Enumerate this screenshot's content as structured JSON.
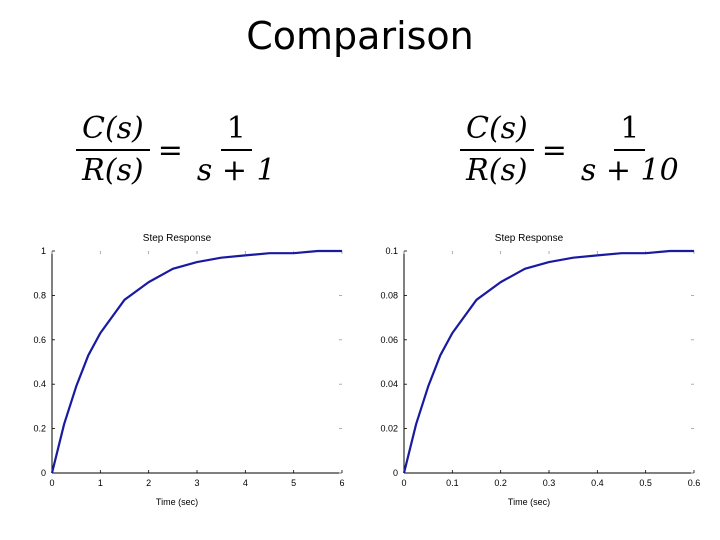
{
  "slide": {
    "title": "Comparison"
  },
  "formulas": [
    {
      "lhs_num": "C(s)",
      "lhs_den": "R(s)",
      "rhs_num": "1",
      "rhs_den": "s + 1"
    },
    {
      "lhs_num": "C(s)",
      "lhs_den": "R(s)",
      "rhs_num": "1",
      "rhs_den": "s + 10"
    }
  ],
  "chart_data": [
    {
      "type": "line",
      "title": "Step Response",
      "xlabel": "Time (sec)",
      "ylabel": "",
      "xlim": [
        0,
        6
      ],
      "ylim": [
        0,
        1
      ],
      "xticks": [
        0,
        1,
        2,
        3,
        4,
        5,
        6
      ],
      "yticks": [
        0,
        0.2,
        0.4,
        0.6,
        0.8,
        1
      ],
      "xtick_labels": [
        "0",
        "1",
        "2",
        "3",
        "4",
        "5",
        "6"
      ],
      "ytick_labels": [
        "0",
        "0.2",
        "0.4",
        "0.6",
        "0.8",
        "1"
      ],
      "grid": false,
      "line_color": "#1a1aa0",
      "series": [
        {
          "x": [
            0,
            0.25,
            0.5,
            0.75,
            1,
            1.5,
            2,
            2.5,
            3,
            3.5,
            4,
            4.5,
            5,
            5.5,
            6
          ],
          "y": [
            0,
            0.22,
            0.39,
            0.53,
            0.63,
            0.78,
            0.86,
            0.92,
            0.95,
            0.97,
            0.98,
            0.99,
            0.99,
            1.0,
            1.0
          ]
        }
      ]
    },
    {
      "type": "line",
      "title": "Step Response",
      "xlabel": "Time (sec)",
      "ylabel": "",
      "xlim": [
        0,
        0.6
      ],
      "ylim": [
        0,
        0.1
      ],
      "xticks": [
        0,
        0.1,
        0.2,
        0.3,
        0.4,
        0.5,
        0.6
      ],
      "yticks": [
        0,
        0.02,
        0.04,
        0.06,
        0.08,
        0.1
      ],
      "xtick_labels": [
        "0",
        "0.1",
        "0.2",
        "0.3",
        "0.4",
        "0.5",
        "0.6"
      ],
      "ytick_labels": [
        "0",
        "0.02",
        "0.04",
        "0.06",
        "0.08",
        "0.1"
      ],
      "grid": false,
      "line_color": "#1a1aa0",
      "series": [
        {
          "x": [
            0,
            0.025,
            0.05,
            0.075,
            0.1,
            0.15,
            0.2,
            0.25,
            0.3,
            0.35,
            0.4,
            0.45,
            0.5,
            0.55,
            0.6
          ],
          "y": [
            0,
            0.022,
            0.039,
            0.053,
            0.063,
            0.078,
            0.086,
            0.092,
            0.095,
            0.097,
            0.098,
            0.099,
            0.099,
            0.1,
            0.1
          ]
        }
      ]
    }
  ]
}
